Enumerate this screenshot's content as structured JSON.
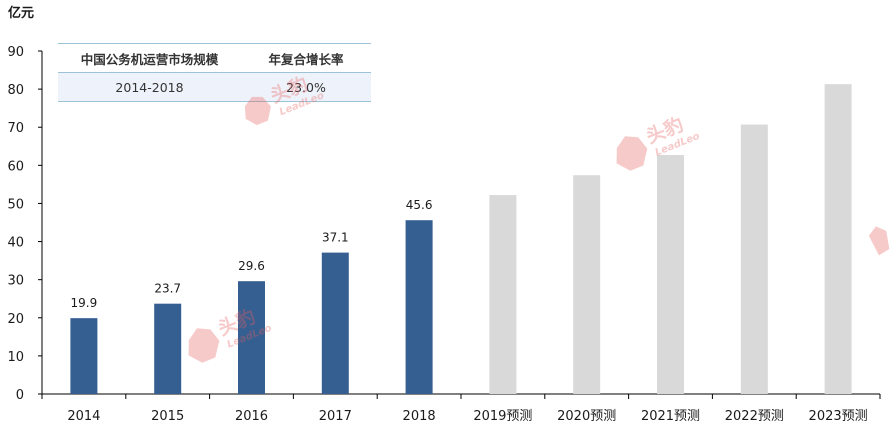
{
  "unit": "亿元",
  "table": {
    "header": [
      "中国公务机运营市场规模",
      "年复合增长率"
    ],
    "row": [
      "2014-2018",
      "23.0%"
    ]
  },
  "watermark": {
    "cn": "头豹",
    "en": "LeadLeo"
  },
  "chart_data": {
    "type": "bar",
    "categories": [
      "2014",
      "2015",
      "2016",
      "2017",
      "2018",
      "2019预测",
      "2020预测",
      "2021预测",
      "2022预测",
      "2023预测"
    ],
    "values": [
      19.9,
      23.7,
      29.6,
      37.1,
      45.6,
      52.2,
      57.4,
      62.7,
      70.7,
      81.3
    ],
    "data_labels": [
      "19.9",
      "23.7",
      "29.6",
      "37.1",
      "45.6",
      "",
      "",
      "",
      "",
      ""
    ],
    "bar_colors": [
      "#365f91",
      "#365f91",
      "#365f91",
      "#365f91",
      "#365f91",
      "#d9d9d9",
      "#d9d9d9",
      "#d9d9d9",
      "#d9d9d9",
      "#d9d9d9"
    ],
    "ylabel": "亿元",
    "ylim": [
      0,
      90
    ],
    "yticks": [
      0,
      10,
      20,
      30,
      40,
      50,
      60,
      70,
      80,
      90
    ],
    "grid": false,
    "legend": "none"
  }
}
